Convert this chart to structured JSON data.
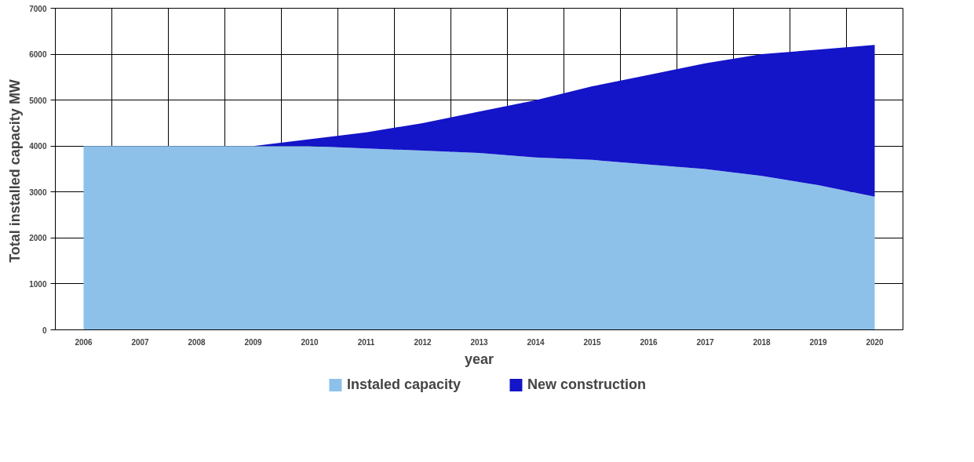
{
  "chart_data": {
    "type": "area",
    "stacked": true,
    "xlabel": "year",
    "ylabel": "Total installed capacity  MW",
    "categories": [
      "2006",
      "2007",
      "2008",
      "2009",
      "2010",
      "2011",
      "2012",
      "2013",
      "2014",
      "2015",
      "2016",
      "2017",
      "2018",
      "2019",
      "2020"
    ],
    "series": [
      {
        "name": "Instaled capacity",
        "color": "#8dc1ea",
        "values": [
          4000,
          4000,
          4000,
          4000,
          4000,
          3950,
          3900,
          3850,
          3750,
          3700,
          3600,
          3500,
          3350,
          3150,
          2900
        ]
      },
      {
        "name": "New construction",
        "color": "#1414c8",
        "values": [
          0,
          0,
          0,
          0,
          150,
          350,
          600,
          900,
          1250,
          1600,
          1950,
          2300,
          2650,
          2950,
          3300
        ]
      }
    ],
    "ylim": [
      0,
      7000
    ],
    "yticks": [
      0,
      1000,
      2000,
      3000,
      4000,
      5000,
      6000,
      7000
    ],
    "grid": true,
    "legend": "bottom"
  }
}
